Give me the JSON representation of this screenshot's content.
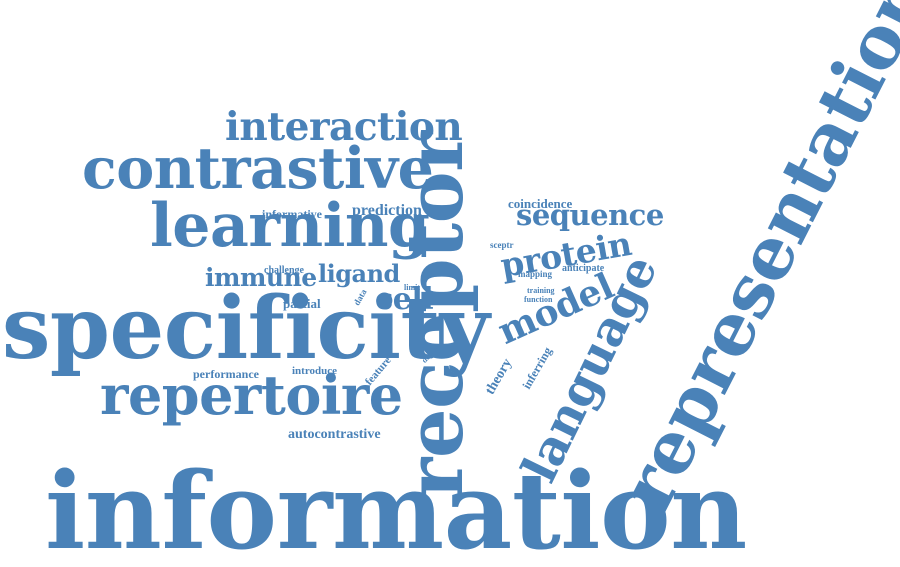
{
  "word_color": "#4a82b8",
  "background": "#ffffff",
  "words": {
    "information": "information",
    "receptor": "receptor",
    "representation": "representation",
    "specificity": "specificity",
    "contrastive": "contrastive",
    "learning": "learning",
    "repertoire": "repertoire",
    "language": "language",
    "interaction": "interaction",
    "model": "model",
    "protein": "protein",
    "sequence": "sequence",
    "cell": "cell",
    "immune": "immune",
    "ligand": "ligand",
    "prediction": "prediction",
    "informative": "informative",
    "coincidence": "coincidence",
    "challenge": "challenge",
    "partial": "partial",
    "performance": "performance",
    "introduce": "introduce",
    "feature": "feature",
    "degree": "degree",
    "theory": "theory",
    "inferring": "inferring",
    "autocontrastive": "autocontrastive",
    "data": "data",
    "limit": "limit",
    "sceptr": "sceptr",
    "mapping": "mapping",
    "anticipate": "anticipate",
    "training": "training",
    "function": "function"
  }
}
